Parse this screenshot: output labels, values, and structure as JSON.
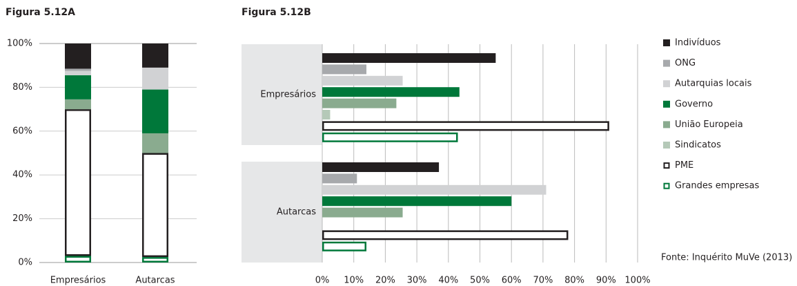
{
  "chart_data": [
    {
      "type": "stacked-bar",
      "title": "Figura 5.12A",
      "categories": [
        "Empresários",
        "Autarcas"
      ],
      "ylim": [
        0,
        100
      ],
      "yticks": [
        {
          "value": 0,
          "label": "0%"
        },
        {
          "value": 20,
          "label": "20%"
        },
        {
          "value": 40,
          "label": "40%"
        },
        {
          "value": 60,
          "label": "60%"
        },
        {
          "value": 80,
          "label": "80%"
        },
        {
          "value": 100,
          "label": "100%"
        }
      ],
      "grid": true,
      "series": [
        {
          "values": [
            11.5,
            11
          ]
        },
        {
          "values": [
            1,
            0
          ]
        },
        {
          "values": [
            2,
            10
          ]
        },
        {
          "values": [
            11,
            20
          ]
        },
        {
          "values": [
            4.5,
            9
          ]
        },
        {
          "values": [
            0,
            0
          ]
        },
        {
          "values": [
            67,
            47.5
          ]
        },
        {
          "values": [
            3,
            2.5
          ]
        }
      ]
    },
    {
      "type": "hbar",
      "title": "Figura 5.12B",
      "categories": [
        "Empresários",
        "Autarcas"
      ],
      "xlim": [
        0,
        100
      ],
      "xticks": [
        {
          "value": 0,
          "label": "0%"
        },
        {
          "value": 10,
          "label": "10%"
        },
        {
          "value": 20,
          "label": "20%"
        },
        {
          "value": 30,
          "label": "30%"
        },
        {
          "value": 40,
          "label": "40%"
        },
        {
          "value": 50,
          "label": "50%"
        },
        {
          "value": 60,
          "label": "60%"
        },
        {
          "value": 70,
          "label": "70%"
        },
        {
          "value": 80,
          "label": "80%"
        },
        {
          "value": 90,
          "label": "90%"
        },
        {
          "value": 100,
          "label": "100%"
        }
      ],
      "grid": true,
      "legend": "right",
      "source": "Fonte: Inquérito MuVe (2013)",
      "series": [
        {
          "name": "Indivíduos",
          "color": "#231f20",
          "values": [
            55,
            37
          ]
        },
        {
          "name": "ONG",
          "color": "#a7a9ac",
          "values": [
            14,
            11
          ]
        },
        {
          "name": "Autarquias locais",
          "color": "#d1d2d4",
          "values": [
            25.5,
            71
          ]
        },
        {
          "name": "Governo",
          "color": "#00783a",
          "values": [
            43.5,
            60
          ]
        },
        {
          "name": "União Europeia",
          "color": "#8aab8f",
          "values": [
            23.5,
            25.5
          ]
        },
        {
          "name": "Sindicatos",
          "color": "#b5c9b8",
          "values": [
            2.5,
            0
          ]
        },
        {
          "name": "PME",
          "color": "#231f20",
          "outline": true,
          "values": [
            91,
            78
          ]
        },
        {
          "name": "Grandes empresas",
          "color": "#00783a",
          "outline": true,
          "values": [
            43,
            14
          ]
        }
      ]
    }
  ]
}
